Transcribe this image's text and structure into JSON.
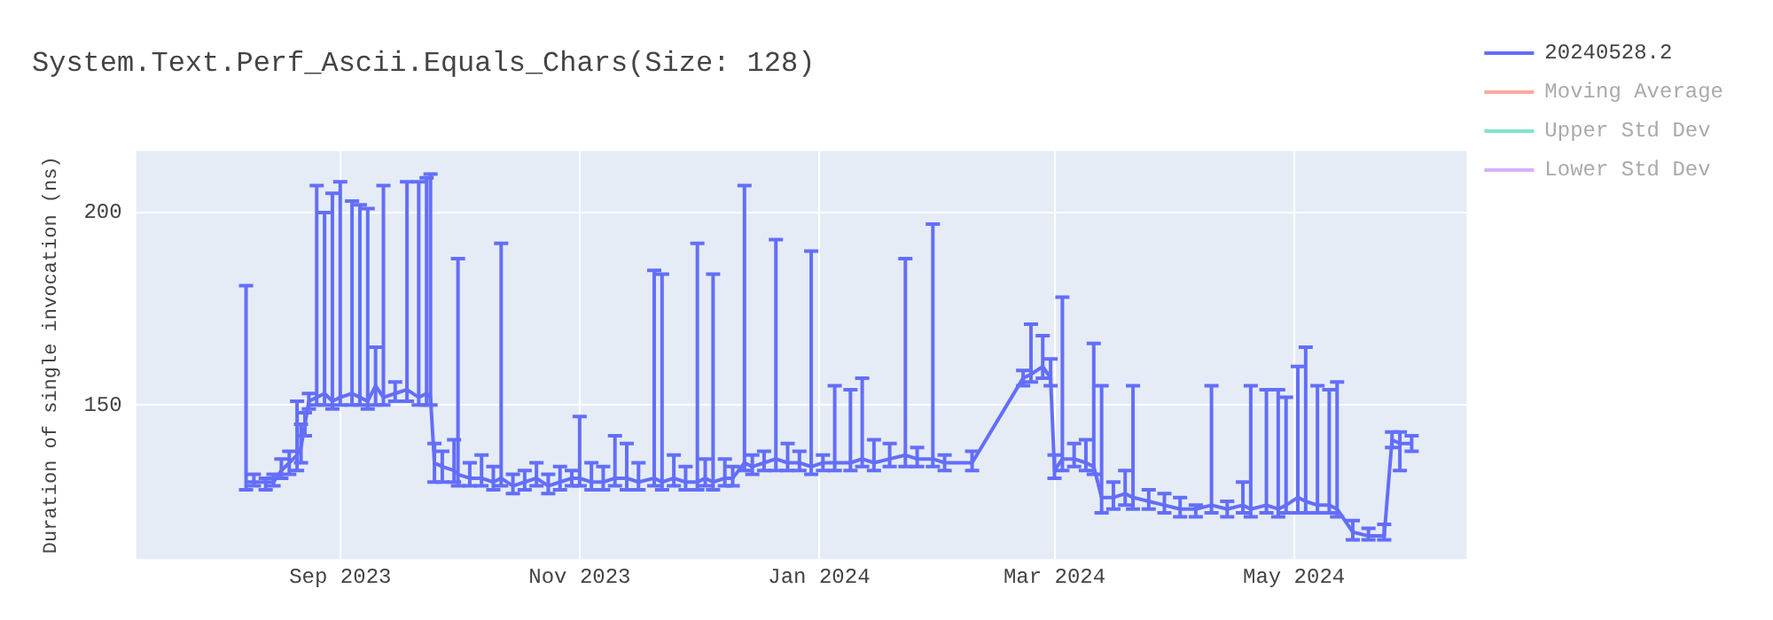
{
  "chart_data": {
    "type": "line",
    "title": "System.Text.Perf_Ascii.Equals_Chars(Size: 128)",
    "ylabel": "Duration of single invocation (ns)",
    "x": [
      "2023-08-08",
      "2023-08-10",
      "2023-08-13",
      "2023-08-15",
      "2023-08-17",
      "2023-08-19",
      "2023-08-21",
      "2023-08-22",
      "2023-08-23",
      "2023-08-24",
      "2023-08-26",
      "2023-08-28",
      "2023-08-30",
      "2023-09-01",
      "2023-09-04",
      "2023-09-06",
      "2023-09-08",
      "2023-09-10",
      "2023-09-12",
      "2023-09-15",
      "2023-09-18",
      "2023-09-21",
      "2023-09-23",
      "2023-09-24",
      "2023-09-25",
      "2023-09-27",
      "2023-09-30",
      "2023-10-01",
      "2023-10-04",
      "2023-10-07",
      "2023-10-10",
      "2023-10-12",
      "2023-10-15",
      "2023-10-18",
      "2023-10-21",
      "2023-10-24",
      "2023-10-27",
      "2023-10-30",
      "2023-11-01",
      "2023-11-04",
      "2023-11-07",
      "2023-11-10",
      "2023-11-13",
      "2023-11-16",
      "2023-11-20",
      "2023-11-22",
      "2023-11-25",
      "2023-11-28",
      "2023-12-01",
      "2023-12-03",
      "2023-12-05",
      "2023-12-08",
      "2023-12-10",
      "2023-12-13",
      "2023-12-15",
      "2023-12-18",
      "2023-12-21",
      "2023-12-24",
      "2023-12-27",
      "2023-12-30",
      "2024-01-02",
      "2024-01-05",
      "2024-01-09",
      "2024-01-12",
      "2024-01-15",
      "2024-01-19",
      "2024-01-23",
      "2024-01-26",
      "2024-01-30",
      "2024-02-02",
      "2024-02-09",
      "2024-02-22",
      "2024-02-24",
      "2024-02-27",
      "2024-02-29",
      "2024-03-01",
      "2024-03-03",
      "2024-03-06",
      "2024-03-09",
      "2024-03-11",
      "2024-03-13",
      "2024-03-16",
      "2024-03-19",
      "2024-03-21",
      "2024-03-25",
      "2024-03-29",
      "2024-04-02",
      "2024-04-06",
      "2024-04-10",
      "2024-04-14",
      "2024-04-18",
      "2024-04-20",
      "2024-04-24",
      "2024-04-27",
      "2024-04-29",
      "2024-05-02",
      "2024-05-04",
      "2024-05-07",
      "2024-05-10",
      "2024-05-12",
      "2024-05-16",
      "2024-05-20",
      "2024-05-24",
      "2024-05-26",
      "2024-05-28",
      "2024-05-31"
    ],
    "series": [
      {
        "name": "20240528.2",
        "color": "#636efa",
        "values": [
          130,
          130,
          130,
          130,
          133,
          135,
          137,
          139,
          145,
          151,
          152,
          153,
          151,
          152,
          153,
          152,
          151,
          155,
          152,
          153,
          154,
          152,
          153,
          152,
          135,
          134,
          133,
          132,
          131,
          131,
          130,
          131,
          129,
          130,
          131,
          129,
          130,
          131,
          131,
          130,
          130,
          131,
          131,
          130,
          131,
          130,
          131,
          130,
          130,
          131,
          130,
          131,
          131,
          135,
          134,
          135,
          136,
          135,
          135,
          134,
          135,
          135,
          135,
          136,
          135,
          136,
          137,
          136,
          136,
          135,
          135,
          157,
          158,
          160,
          157,
          133,
          136,
          136,
          135,
          134,
          126,
          126,
          127,
          126,
          125,
          124,
          123,
          123,
          124,
          123,
          124,
          123,
          124,
          123,
          124,
          126,
          125,
          124,
          124,
          123,
          117,
          116,
          116,
          141,
          140,
          140
        ],
        "errors": [
          [
            128,
            181
          ],
          [
            129,
            132
          ],
          [
            128,
            131
          ],
          [
            129,
            132
          ],
          [
            131,
            136
          ],
          [
            132,
            138
          ],
          [
            133,
            151
          ],
          [
            135,
            145
          ],
          [
            142,
            148
          ],
          [
            149,
            153
          ],
          [
            150,
            207
          ],
          [
            150,
            200
          ],
          [
            149,
            205
          ],
          [
            150,
            208
          ],
          [
            150,
            203
          ],
          [
            150,
            202
          ],
          [
            149,
            201
          ],
          [
            150,
            165
          ],
          [
            150,
            207
          ],
          [
            151,
            156
          ],
          [
            151,
            208
          ],
          [
            150,
            208
          ],
          [
            150,
            209
          ],
          [
            150,
            210
          ],
          [
            130,
            140
          ],
          [
            130,
            138
          ],
          [
            130,
            141
          ],
          [
            129,
            188
          ],
          [
            129,
            135
          ],
          [
            129,
            137
          ],
          [
            128,
            134
          ],
          [
            129,
            192
          ],
          [
            127,
            132
          ],
          [
            128,
            133
          ],
          [
            129,
            135
          ],
          [
            127,
            132
          ],
          [
            128,
            134
          ],
          [
            129,
            133
          ],
          [
            129,
            147
          ],
          [
            128,
            135
          ],
          [
            128,
            134
          ],
          [
            129,
            142
          ],
          [
            128,
            140
          ],
          [
            128,
            135
          ],
          [
            129,
            185
          ],
          [
            128,
            184
          ],
          [
            129,
            137
          ],
          [
            128,
            134
          ],
          [
            128,
            192
          ],
          [
            129,
            136
          ],
          [
            128,
            184
          ],
          [
            129,
            136
          ],
          [
            129,
            134
          ],
          [
            133,
            207
          ],
          [
            132,
            137
          ],
          [
            133,
            138
          ],
          [
            133,
            193
          ],
          [
            133,
            140
          ],
          [
            133,
            138
          ],
          [
            132,
            190
          ],
          [
            133,
            137
          ],
          [
            133,
            155
          ],
          [
            133,
            154
          ],
          [
            134,
            157
          ],
          [
            133,
            141
          ],
          [
            134,
            140
          ],
          [
            134,
            188
          ],
          [
            134,
            139
          ],
          [
            134,
            197
          ],
          [
            133,
            137
          ],
          [
            133,
            138
          ],
          [
            155,
            159
          ],
          [
            156,
            171
          ],
          [
            157,
            168
          ],
          [
            155,
            162
          ],
          [
            131,
            137
          ],
          [
            133,
            178
          ],
          [
            134,
            140
          ],
          [
            133,
            141
          ],
          [
            132,
            166
          ],
          [
            122,
            155
          ],
          [
            123,
            130
          ],
          [
            124,
            133
          ],
          [
            123,
            155
          ],
          [
            123,
            128
          ],
          [
            122,
            127
          ],
          [
            121,
            126
          ],
          [
            121,
            124
          ],
          [
            122,
            155
          ],
          [
            121,
            125
          ],
          [
            122,
            130
          ],
          [
            121,
            155
          ],
          [
            122,
            154
          ],
          [
            121,
            154
          ],
          [
            122,
            152
          ],
          [
            122,
            160
          ],
          [
            122,
            165
          ],
          [
            122,
            155
          ],
          [
            122,
            154
          ],
          [
            121,
            156
          ],
          [
            115,
            120
          ],
          [
            115,
            118
          ],
          [
            115,
            119
          ],
          [
            139,
            143
          ],
          [
            133,
            143
          ],
          [
            138,
            142
          ]
        ]
      },
      {
        "name": "Moving Average",
        "color": "#ef553b",
        "values": [
          null,
          null,
          null,
          null,
          null,
          null,
          null,
          null,
          null,
          null,
          null,
          null,
          null,
          null,
          null,
          null,
          null,
          null,
          null,
          null,
          null,
          null,
          null,
          null,
          null,
          null,
          null,
          null,
          null,
          null,
          null,
          null,
          null,
          null,
          null,
          null,
          null,
          null,
          null,
          null,
          null,
          null,
          null,
          null,
          null,
          null,
          null,
          null,
          null,
          null,
          null,
          null,
          null,
          null,
          null,
          null,
          null,
          null,
          null,
          null,
          null,
          null,
          null,
          null,
          null,
          null,
          null,
          null,
          null,
          null,
          null,
          null,
          null,
          null,
          null,
          null,
          null,
          null,
          null,
          null,
          null,
          null,
          null,
          null,
          null,
          null,
          null,
          null,
          null,
          null,
          null,
          null,
          null,
          null,
          null,
          null,
          null,
          null,
          null,
          null,
          null,
          null,
          null,
          null,
          null,
          null
        ]
      },
      {
        "name": "Upper Std Dev",
        "color": "#00cc96",
        "values": [
          null,
          null,
          null,
          null,
          null,
          null,
          null,
          null,
          null,
          null,
          null,
          null,
          null,
          null,
          null,
          null,
          null,
          null,
          null,
          null,
          null,
          null,
          null,
          null,
          null,
          null,
          null,
          null,
          null,
          null,
          null,
          null,
          null,
          null,
          null,
          null,
          null,
          null,
          null,
          null,
          null,
          null,
          null,
          null,
          null,
          null,
          null,
          null,
          null,
          null,
          null,
          null,
          null,
          null,
          null,
          null,
          null,
          null,
          null,
          null,
          null,
          null,
          null,
          null,
          null,
          null,
          null,
          null,
          null,
          null,
          null,
          null,
          null,
          null,
          null,
          null,
          null,
          null,
          null,
          null,
          null,
          null,
          null,
          null,
          null,
          null,
          null,
          null,
          null,
          null,
          null,
          null,
          null,
          null,
          null,
          null,
          null,
          null,
          null,
          null,
          null,
          null,
          null,
          null,
          null,
          null
        ]
      },
      {
        "name": "Lower Std Dev",
        "color": "#ab63fa",
        "values": [
          null,
          null,
          null,
          null,
          null,
          null,
          null,
          null,
          null,
          null,
          null,
          null,
          null,
          null,
          null,
          null,
          null,
          null,
          null,
          null,
          null,
          null,
          null,
          null,
          null,
          null,
          null,
          null,
          null,
          null,
          null,
          null,
          null,
          null,
          null,
          null,
          null,
          null,
          null,
          null,
          null,
          null,
          null,
          null,
          null,
          null,
          null,
          null,
          null,
          null,
          null,
          null,
          null,
          null,
          null,
          null,
          null,
          null,
          null,
          null,
          null,
          null,
          null,
          null,
          null,
          null,
          null,
          null,
          null,
          null,
          null,
          null,
          null,
          null,
          null,
          null,
          null,
          null,
          null,
          null,
          null,
          null,
          null,
          null,
          null,
          null,
          null,
          null,
          null,
          null,
          null,
          null,
          null,
          null,
          null,
          null,
          null,
          null,
          null,
          null,
          null,
          null,
          null,
          null,
          null,
          null
        ]
      }
    ],
    "xlim": [
      "2023-07-11",
      "2024-06-14"
    ],
    "xticks": [
      {
        "value": "2023-09-01",
        "label": "Sep 2023"
      },
      {
        "value": "2023-11-01",
        "label": "Nov 2023"
      },
      {
        "value": "2024-01-01",
        "label": "Jan 2024"
      },
      {
        "value": "2024-03-01",
        "label": "Mar 2024"
      },
      {
        "value": "2024-05-01",
        "label": "May 2024"
      }
    ],
    "ylim": [
      110,
      216
    ],
    "yticks": [
      150,
      200
    ],
    "grid": true,
    "legend": "top right"
  }
}
